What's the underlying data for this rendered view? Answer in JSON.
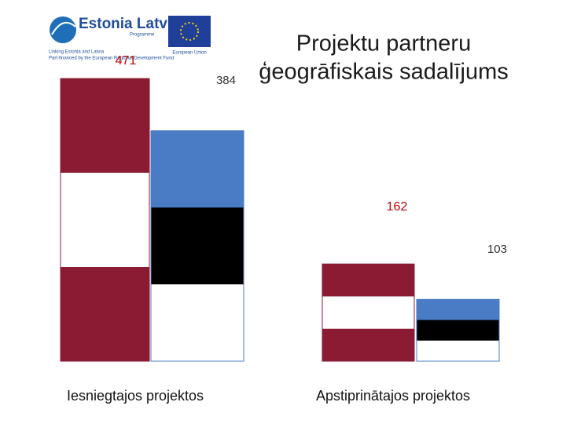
{
  "logo": {
    "name": "Estonia Latvia",
    "programme": "Programme",
    "line1": "Linking Estonia and Latvia",
    "line2": "Part-financed by the European Regional Development Fund",
    "eu": "European Union"
  },
  "chart_data": {
    "type": "bar",
    "title": "Projektu partneru ģeogrāfiskais sadalījums",
    "categories": [
      "Iesniegtajos projektos",
      "Apstiprinātajos projektos"
    ],
    "series": [
      {
        "color": "#8b1a33",
        "colors": [
          "#8b1a33",
          "#ffffff",
          "#8b1a33"
        ],
        "values": [
          471,
          162
        ]
      },
      {
        "color": "#4a7cc6",
        "colors": [
          "#4a7cc6",
          "#000000",
          "#ffffff"
        ],
        "values": [
          384,
          103
        ]
      }
    ]
  }
}
